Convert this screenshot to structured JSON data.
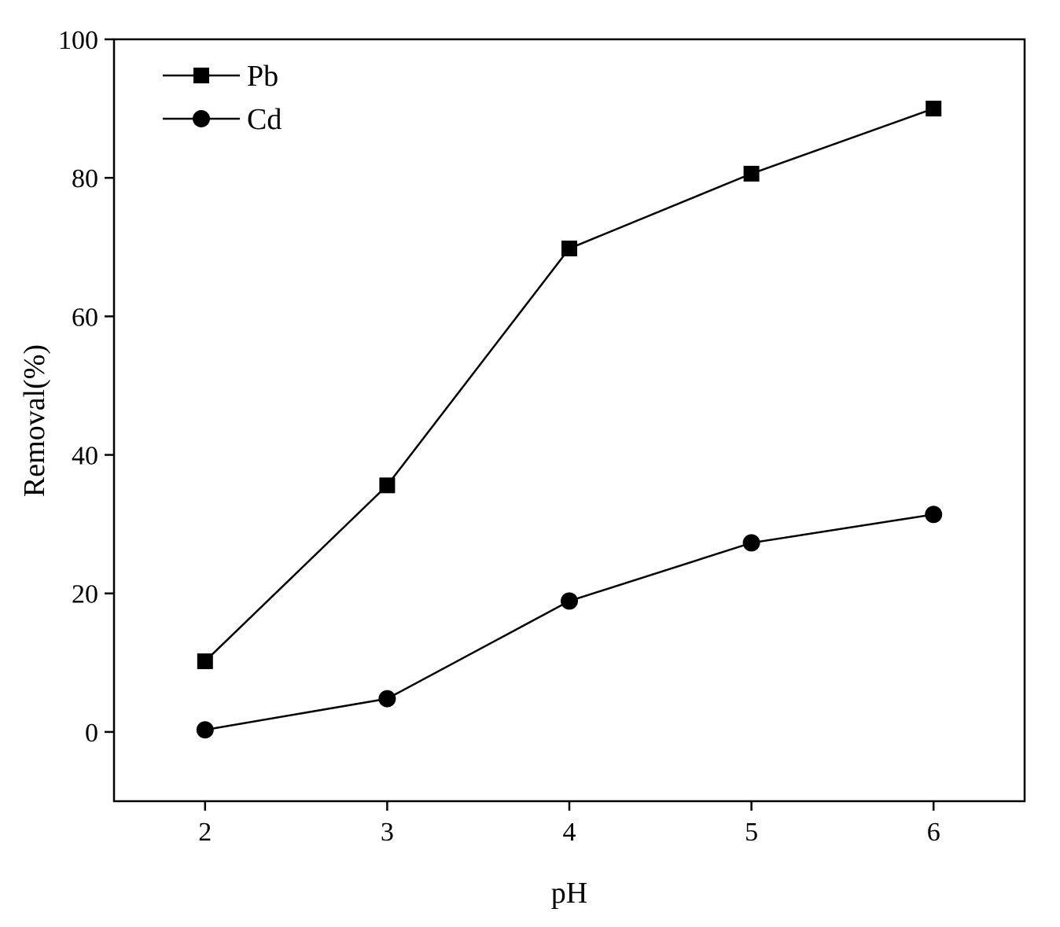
{
  "chart_data": {
    "type": "line",
    "title": "",
    "xlabel": "pH",
    "ylabel": "Removal(%)",
    "x": [
      2,
      3,
      4,
      5,
      6
    ],
    "xlim": [
      1.5,
      6.5
    ],
    "ylim": [
      -10,
      100
    ],
    "xticks": [
      2,
      3,
      4,
      5,
      6
    ],
    "yticks": [
      0,
      20,
      40,
      60,
      80,
      100
    ],
    "grid": false,
    "legend": "top-left",
    "series": [
      {
        "name": "Pb",
        "marker": "square",
        "color": "#000000",
        "values": [
          10.2,
          35.6,
          69.8,
          80.6,
          90.0
        ]
      },
      {
        "name": "Cd",
        "marker": "circle",
        "color": "#000000",
        "values": [
          0.3,
          4.8,
          18.9,
          27.3,
          31.4
        ]
      }
    ]
  }
}
